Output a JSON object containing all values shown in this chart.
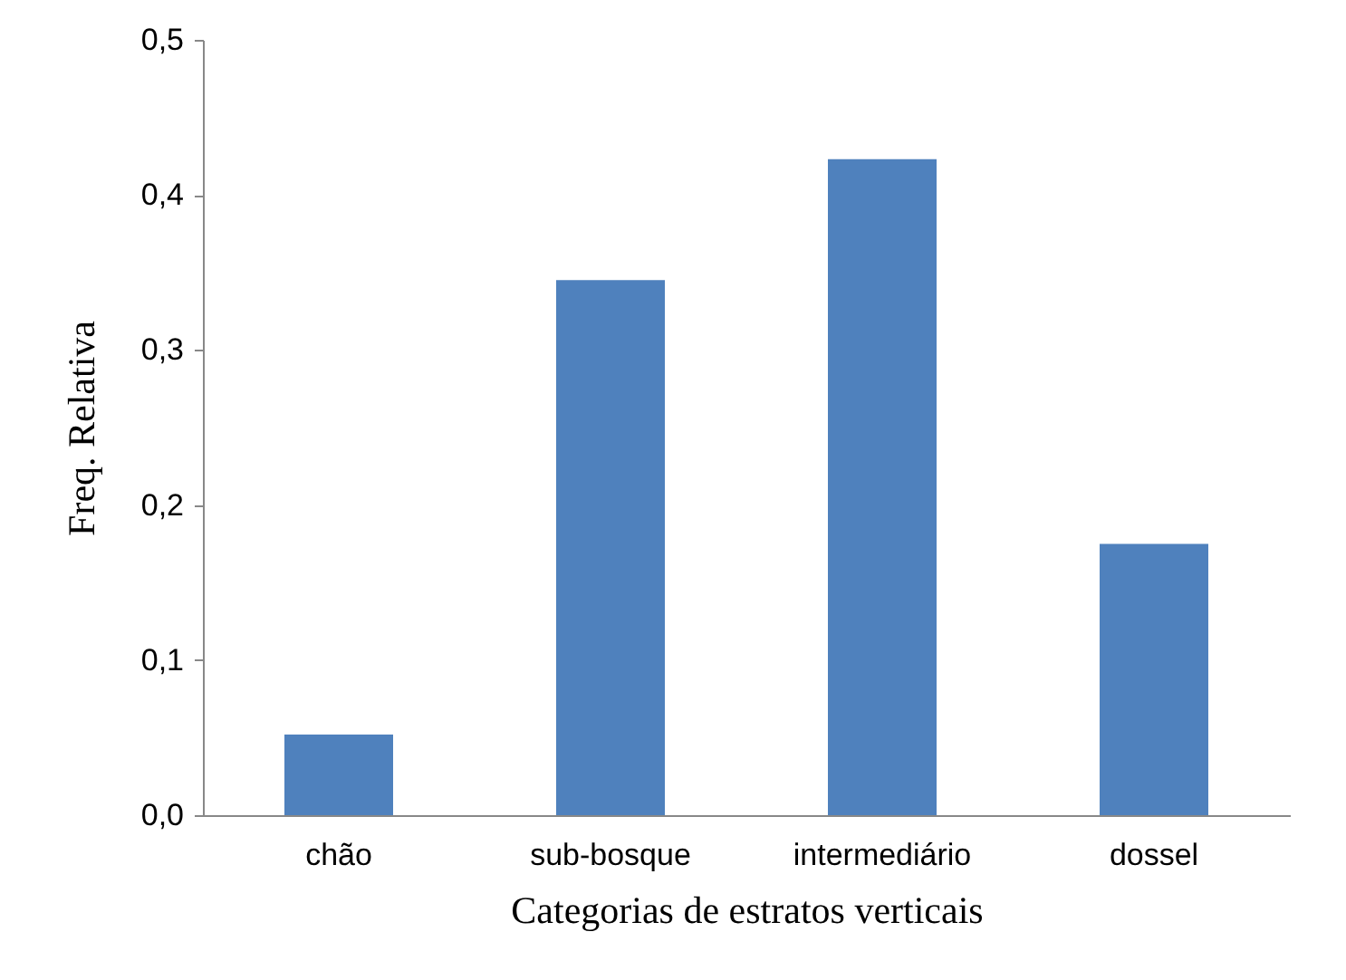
{
  "chart_data": {
    "type": "bar",
    "xlabel": "Categorias de estratos verticais",
    "ylabel": "Freq. Relativa",
    "categories": [
      "chão",
      "sub-bosque",
      "intermediário",
      "dossel"
    ],
    "values": [
      0.052,
      0.345,
      0.423,
      0.175
    ],
    "color": "#4f81bd",
    "ylim": [
      0,
      0.5
    ],
    "yticks": [
      {
        "value": 0,
        "label": "0,0"
      },
      {
        "value": 0.1,
        "label": "0,1"
      },
      {
        "value": 0.2,
        "label": "0,2"
      },
      {
        "value": 0.3,
        "label": "0,3"
      },
      {
        "value": 0.4,
        "label": "0,4"
      },
      {
        "value": 0.5,
        "label": "0,5"
      }
    ],
    "grid": false
  }
}
